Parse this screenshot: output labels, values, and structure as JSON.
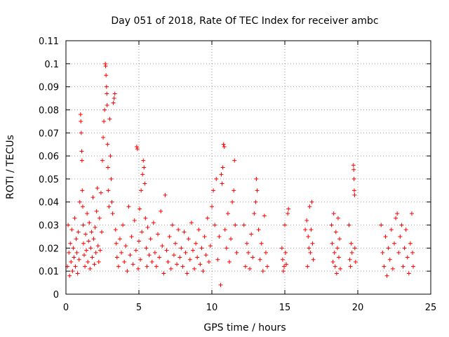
{
  "chart_data": {
    "type": "scatter",
    "title": "Day 051 of 2018, Rate Of TEC Index for receiver ambc",
    "xlabel": "GPS time / hours",
    "ylabel": "ROTI / TECUs",
    "xlim": [
      0,
      25
    ],
    "ylim": [
      0,
      0.11
    ],
    "x_ticks": [
      "0",
      "5",
      "10",
      "15",
      "20",
      "25"
    ],
    "y_ticks": [
      "0",
      "0.01",
      "0.02",
      "0.03",
      "0.04",
      "0.05",
      "0.06",
      "0.07",
      "0.08",
      "0.09",
      "0.1",
      "0.11"
    ],
    "grid": true,
    "marker": "plus",
    "color": "#ff0000",
    "series": [
      {
        "points": [
          [
            0.1,
            0.012
          ],
          [
            0.15,
            0.03
          ],
          [
            0.2,
            0.018
          ],
          [
            0.25,
            0.008
          ],
          [
            0.3,
            0.022
          ],
          [
            0.35,
            0.014
          ],
          [
            0.4,
            0.028
          ],
          [
            0.45,
            0.01
          ],
          [
            0.5,
            0.02
          ],
          [
            0.55,
            0.016
          ],
          [
            0.6,
            0.033
          ],
          [
            0.65,
            0.012
          ],
          [
            0.7,
            0.024
          ],
          [
            0.75,
            0.018
          ],
          [
            0.8,
            0.009
          ],
          [
            0.85,
            0.027
          ],
          [
            0.9,
            0.015
          ],
          [
            0.95,
            0.04
          ],
          [
            1.0,
            0.078
          ],
          [
            1.02,
            0.075
          ],
          [
            1.05,
            0.07
          ],
          [
            1.08,
            0.062
          ],
          [
            1.1,
            0.058
          ],
          [
            1.12,
            0.045
          ],
          [
            1.15,
            0.038
          ],
          [
            1.18,
            0.03
          ],
          [
            1.2,
            0.022
          ],
          [
            1.25,
            0.017
          ],
          [
            1.3,
            0.012
          ],
          [
            1.35,
            0.026
          ],
          [
            1.4,
            0.019
          ],
          [
            1.45,
            0.035
          ],
          [
            1.5,
            0.014
          ],
          [
            1.55,
            0.023
          ],
          [
            1.6,
            0.031
          ],
          [
            1.65,
            0.011
          ],
          [
            1.7,
            0.02
          ],
          [
            1.75,
            0.027
          ],
          [
            1.8,
            0.016
          ],
          [
            1.85,
            0.042
          ],
          [
            1.9,
            0.024
          ],
          [
            1.95,
            0.013
          ],
          [
            2.0,
            0.029
          ],
          [
            2.05,
            0.018
          ],
          [
            2.1,
            0.036
          ],
          [
            2.15,
            0.046
          ],
          [
            2.2,
            0.021
          ],
          [
            2.25,
            0.014
          ],
          [
            2.3,
            0.033
          ],
          [
            2.35,
            0.019
          ],
          [
            2.4,
            0.044
          ],
          [
            2.45,
            0.027
          ],
          [
            2.5,
            0.058
          ],
          [
            2.55,
            0.068
          ],
          [
            2.6,
            0.075
          ],
          [
            2.65,
            0.08
          ],
          [
            2.7,
            0.1
          ],
          [
            2.72,
            0.099
          ],
          [
            2.75,
            0.095
          ],
          [
            2.78,
            0.09
          ],
          [
            2.8,
            0.087
          ],
          [
            2.82,
            0.082
          ],
          [
            2.85,
            0.065
          ],
          [
            2.88,
            0.055
          ],
          [
            2.9,
            0.045
          ],
          [
            2.95,
            0.038
          ],
          [
            3.0,
            0.076
          ],
          [
            3.05,
            0.06
          ],
          [
            3.1,
            0.05
          ],
          [
            3.15,
            0.04
          ],
          [
            3.2,
            0.035
          ],
          [
            3.25,
            0.083
          ],
          [
            3.3,
            0.085
          ],
          [
            3.35,
            0.087
          ],
          [
            3.4,
            0.028
          ],
          [
            3.45,
            0.022
          ],
          [
            3.5,
            0.016
          ],
          [
            3.6,
            0.012
          ],
          [
            3.7,
            0.024
          ],
          [
            3.8,
            0.018
          ],
          [
            3.9,
            0.03
          ],
          [
            4.0,
            0.014
          ],
          [
            4.1,
            0.021
          ],
          [
            4.2,
            0.01
          ],
          [
            4.3,
            0.038
          ],
          [
            4.4,
            0.017
          ],
          [
            4.5,
            0.025
          ],
          [
            4.6,
            0.013
          ],
          [
            4.7,
            0.032
          ],
          [
            4.8,
            0.019
          ],
          [
            4.85,
            0.064
          ],
          [
            4.9,
            0.063
          ],
          [
            4.95,
            0.011
          ],
          [
            5.0,
            0.023
          ],
          [
            5.05,
            0.037
          ],
          [
            5.1,
            0.015
          ],
          [
            5.15,
            0.045
          ],
          [
            5.2,
            0.027
          ],
          [
            5.25,
            0.052
          ],
          [
            5.3,
            0.058
          ],
          [
            5.35,
            0.055
          ],
          [
            5.4,
            0.048
          ],
          [
            5.45,
            0.033
          ],
          [
            5.5,
            0.02
          ],
          [
            5.55,
            0.012
          ],
          [
            5.6,
            0.029
          ],
          [
            5.7,
            0.017
          ],
          [
            5.8,
            0.024
          ],
          [
            5.9,
            0.014
          ],
          [
            6.0,
            0.031
          ],
          [
            6.1,
            0.018
          ],
          [
            6.2,
            0.012
          ],
          [
            6.3,
            0.026
          ],
          [
            6.4,
            0.016
          ],
          [
            6.5,
            0.036
          ],
          [
            6.6,
            0.021
          ],
          [
            6.7,
            0.009
          ],
          [
            6.8,
            0.043
          ],
          [
            6.9,
            0.019
          ],
          [
            7.0,
            0.014
          ],
          [
            7.1,
            0.025
          ],
          [
            7.2,
            0.011
          ],
          [
            7.3,
            0.03
          ],
          [
            7.4,
            0.017
          ],
          [
            7.5,
            0.022
          ],
          [
            7.6,
            0.013
          ],
          [
            7.7,
            0.028
          ],
          [
            7.8,
            0.016
          ],
          [
            7.9,
            0.02
          ],
          [
            8.0,
            0.012
          ],
          [
            8.1,
            0.027
          ],
          [
            8.2,
            0.018
          ],
          [
            8.3,
            0.009
          ],
          [
            8.4,
            0.024
          ],
          [
            8.5,
            0.015
          ],
          [
            8.6,
            0.031
          ],
          [
            8.7,
            0.019
          ],
          [
            8.8,
            0.011
          ],
          [
            8.9,
            0.022
          ],
          [
            9.0,
            0.016
          ],
          [
            9.1,
            0.028
          ],
          [
            9.2,
            0.013
          ],
          [
            9.3,
            0.02
          ],
          [
            9.4,
            0.01
          ],
          [
            9.5,
            0.025
          ],
          [
            9.6,
            0.017
          ],
          [
            9.7,
            0.033
          ],
          [
            9.8,
            0.014
          ],
          [
            9.9,
            0.021
          ],
          [
            10.0,
            0.038
          ],
          [
            10.1,
            0.045
          ],
          [
            10.2,
            0.03
          ],
          [
            10.3,
            0.05
          ],
          [
            10.4,
            0.015
          ],
          [
            10.5,
            0.025
          ],
          [
            10.6,
            0.004
          ],
          [
            10.65,
            0.052
          ],
          [
            10.7,
            0.048
          ],
          [
            10.75,
            0.055
          ],
          [
            10.8,
            0.065
          ],
          [
            10.85,
            0.064
          ],
          [
            10.9,
            0.028
          ],
          [
            11.0,
            0.02
          ],
          [
            11.1,
            0.035
          ],
          [
            11.2,
            0.014
          ],
          [
            11.3,
            0.024
          ],
          [
            11.4,
            0.04
          ],
          [
            11.5,
            0.045
          ],
          [
            11.55,
            0.058
          ],
          [
            11.6,
            0.03
          ],
          [
            11.7,
            0.018
          ],
          [
            12.2,
            0.03
          ],
          [
            12.3,
            0.012
          ],
          [
            12.4,
            0.022
          ],
          [
            12.5,
            0.018
          ],
          [
            12.6,
            0.011
          ],
          [
            12.7,
            0.026
          ],
          [
            12.8,
            0.016
          ],
          [
            12.9,
            0.035
          ],
          [
            13.0,
            0.04
          ],
          [
            13.05,
            0.05
          ],
          [
            13.1,
            0.045
          ],
          [
            13.2,
            0.028
          ],
          [
            13.3,
            0.015
          ],
          [
            13.4,
            0.022
          ],
          [
            13.5,
            0.01
          ],
          [
            13.6,
            0.034
          ],
          [
            13.7,
            0.018
          ],
          [
            13.8,
            0.012
          ],
          [
            14.8,
            0.02
          ],
          [
            14.85,
            0.015
          ],
          [
            14.9,
            0.01
          ],
          [
            14.95,
            0.012
          ],
          [
            15.0,
            0.03
          ],
          [
            15.05,
            0.018
          ],
          [
            15.1,
            0.013
          ],
          [
            15.2,
            0.035
          ],
          [
            15.25,
            0.037
          ],
          [
            16.4,
            0.028
          ],
          [
            16.5,
            0.032
          ],
          [
            16.55,
            0.012
          ],
          [
            16.6,
            0.025
          ],
          [
            16.65,
            0.02
          ],
          [
            16.7,
            0.038
          ],
          [
            16.75,
            0.018
          ],
          [
            16.8,
            0.028
          ],
          [
            16.85,
            0.04
          ],
          [
            16.9,
            0.022
          ],
          [
            16.95,
            0.015
          ],
          [
            18.2,
            0.03
          ],
          [
            18.25,
            0.022
          ],
          [
            18.3,
            0.014
          ],
          [
            18.35,
            0.035
          ],
          [
            18.4,
            0.018
          ],
          [
            18.45,
            0.012
          ],
          [
            18.5,
            0.027
          ],
          [
            18.55,
            0.009
          ],
          [
            18.6,
            0.02
          ],
          [
            18.65,
            0.033
          ],
          [
            18.7,
            0.016
          ],
          [
            18.75,
            0.024
          ],
          [
            18.8,
            0.011
          ],
          [
            19.4,
            0.03
          ],
          [
            19.45,
            0.015
          ],
          [
            19.5,
            0.012
          ],
          [
            19.55,
            0.022
          ],
          [
            19.6,
            0.018
          ],
          [
            19.7,
            0.056
          ],
          [
            19.72,
            0.054
          ],
          [
            19.74,
            0.05
          ],
          [
            19.76,
            0.045
          ],
          [
            19.78,
            0.043
          ],
          [
            19.8,
            0.02
          ],
          [
            19.85,
            0.014
          ],
          [
            21.6,
            0.03
          ],
          [
            21.7,
            0.018
          ],
          [
            21.8,
            0.012
          ],
          [
            21.9,
            0.025
          ],
          [
            22.0,
            0.008
          ],
          [
            22.1,
            0.02
          ],
          [
            22.2,
            0.015
          ],
          [
            22.3,
            0.028
          ],
          [
            22.4,
            0.011
          ],
          [
            22.5,
            0.022
          ],
          [
            22.6,
            0.033
          ],
          [
            22.7,
            0.035
          ],
          [
            22.8,
            0.018
          ],
          [
            22.9,
            0.025
          ],
          [
            23.0,
            0.03
          ],
          [
            23.1,
            0.012
          ],
          [
            23.2,
            0.02
          ],
          [
            23.3,
            0.028
          ],
          [
            23.4,
            0.016
          ],
          [
            23.5,
            0.009
          ],
          [
            23.6,
            0.022
          ],
          [
            23.7,
            0.035
          ],
          [
            23.75,
            0.018
          ],
          [
            23.8,
            0.012
          ]
        ]
      }
    ]
  }
}
